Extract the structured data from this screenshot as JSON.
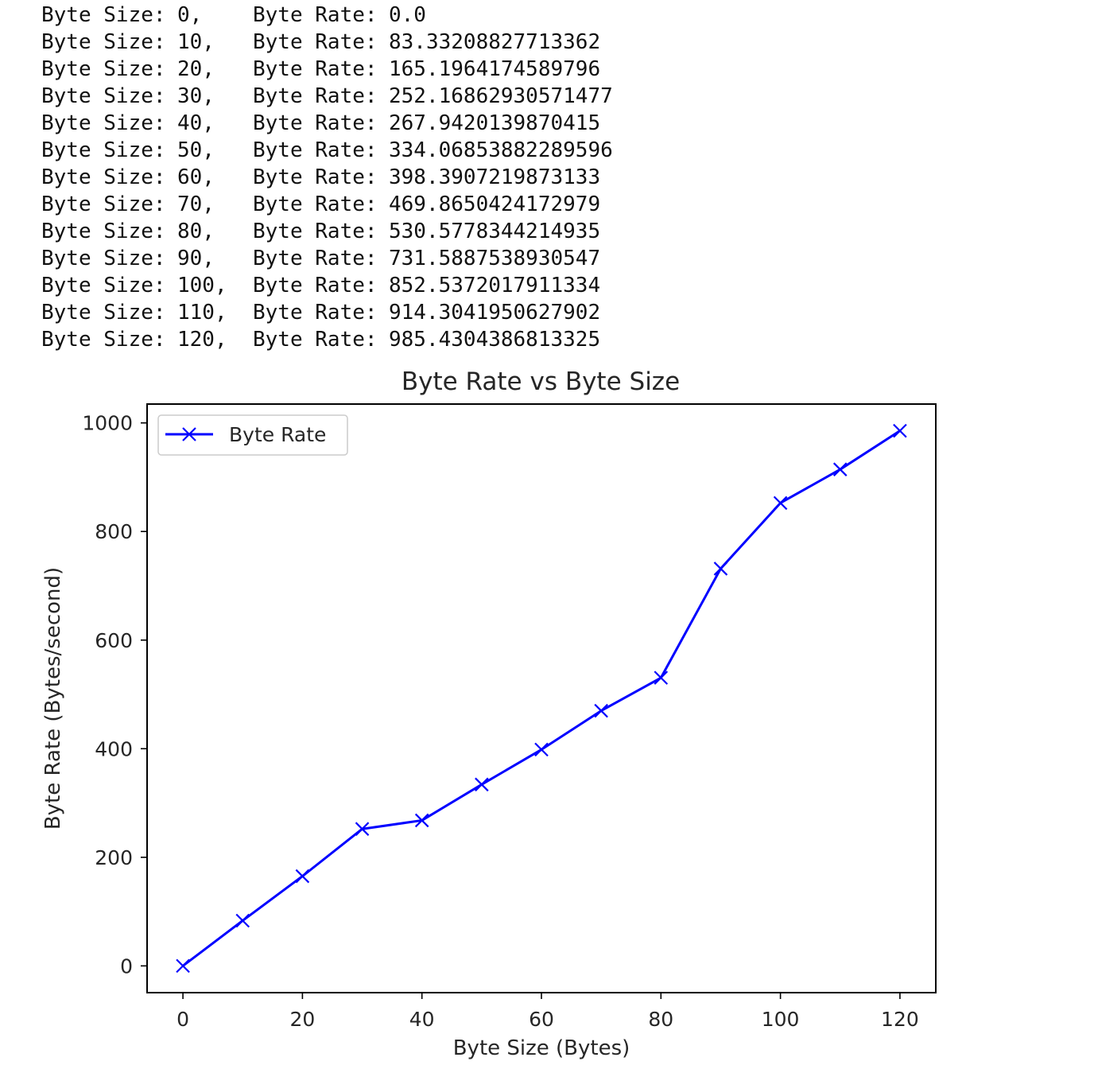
{
  "console": {
    "lines": [
      {
        "size_label": "Byte Size:",
        "size": "0,",
        "rate_label": "Byte Rate:",
        "rate": "0.0"
      },
      {
        "size_label": "Byte Size:",
        "size": "10,",
        "rate_label": "Byte Rate:",
        "rate": "83.33208827713362"
      },
      {
        "size_label": "Byte Size:",
        "size": "20,",
        "rate_label": "Byte Rate:",
        "rate": "165.1964174589796"
      },
      {
        "size_label": "Byte Size:",
        "size": "30,",
        "rate_label": "Byte Rate:",
        "rate": "252.16862930571477"
      },
      {
        "size_label": "Byte Size:",
        "size": "40,",
        "rate_label": "Byte Rate:",
        "rate": "267.9420139870415"
      },
      {
        "size_label": "Byte Size:",
        "size": "50,",
        "rate_label": "Byte Rate:",
        "rate": "334.06853882289596"
      },
      {
        "size_label": "Byte Size:",
        "size": "60,",
        "rate_label": "Byte Rate:",
        "rate": "398.3907219873133"
      },
      {
        "size_label": "Byte Size:",
        "size": "70,",
        "rate_label": "Byte Rate:",
        "rate": "469.8650424172979"
      },
      {
        "size_label": "Byte Size:",
        "size": "80,",
        "rate_label": "Byte Rate:",
        "rate": "530.5778344214935"
      },
      {
        "size_label": "Byte Size:",
        "size": "90,",
        "rate_label": "Byte Rate:",
        "rate": "731.5887538930547"
      },
      {
        "size_label": "Byte Size:",
        "size": "100,",
        "rate_label": "Byte Rate:",
        "rate": "852.5372017911334"
      },
      {
        "size_label": "Byte Size:",
        "size": "110,",
        "rate_label": "Byte Rate:",
        "rate": "914.3041950627902"
      },
      {
        "size_label": "Byte Size:",
        "size": "120,",
        "rate_label": "Byte Rate:",
        "rate": "985.4304386813325"
      }
    ]
  },
  "chart_data": {
    "type": "line",
    "title": "Byte Rate vs Byte Size",
    "xlabel": "Byte Size (Bytes)",
    "ylabel": "Byte Rate (Bytes/second)",
    "x": [
      0,
      10,
      20,
      30,
      40,
      50,
      60,
      70,
      80,
      90,
      100,
      110,
      120
    ],
    "series": [
      {
        "name": "Byte Rate",
        "color": "#0000ff",
        "marker": "x",
        "values": [
          0.0,
          83.33208827713362,
          165.1964174589796,
          252.16862930571477,
          267.9420139870415,
          334.06853882289596,
          398.3907219873133,
          469.8650424172979,
          530.5778344214935,
          731.5887538930547,
          852.5372017911334,
          914.3041950627902,
          985.4304386813325
        ]
      }
    ],
    "xlim": [
      -6,
      126
    ],
    "ylim": [
      -49.27,
      1034.7
    ],
    "xticks": [
      0,
      20,
      40,
      60,
      80,
      100,
      120
    ],
    "xtick_labels": [
      "0",
      "20",
      "40",
      "60",
      "80",
      "100",
      "120"
    ],
    "yticks": [
      0,
      200,
      400,
      600,
      800,
      1000
    ],
    "ytick_labels": [
      "0",
      "200",
      "400",
      "600",
      "800",
      "1000"
    ],
    "grid": false,
    "legend": "upper-left"
  }
}
